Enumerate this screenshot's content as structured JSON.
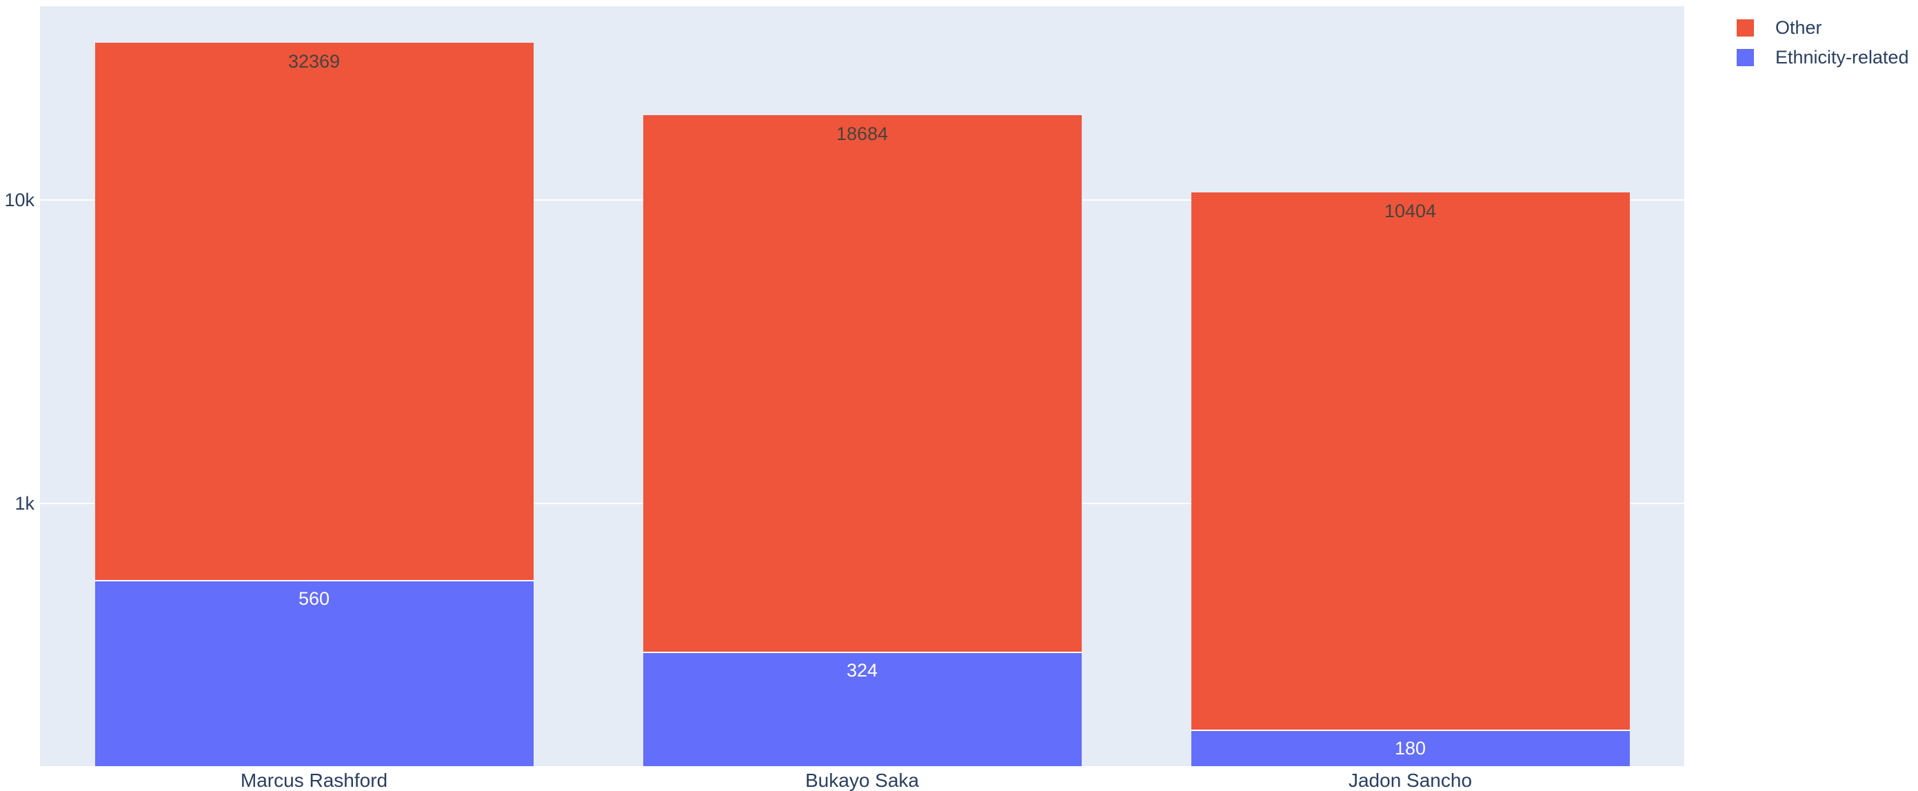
{
  "chart_data": {
    "type": "bar",
    "stacked": true,
    "orientation": "vertical",
    "log_y": true,
    "title": "",
    "xlabel": "",
    "ylabel": "",
    "categories": [
      "Marcus Rashford",
      "Bukayo Saka",
      "Jadon Sancho"
    ],
    "series": [
      {
        "name": "Ethnicity-related",
        "color": "#636EFA",
        "label_color": "#ffffff",
        "values": [
          560,
          324,
          180
        ]
      },
      {
        "name": "Other",
        "color": "#EF553B",
        "label_color": "#46433e",
        "values": [
          32369,
          18684,
          10404
        ]
      }
    ],
    "totals": [
      32929,
      19008,
      10584
    ],
    "legend": [
      {
        "label": "Other",
        "color": "#EF553B"
      },
      {
        "label": "Ethnicity-related",
        "color": "#636EFA"
      }
    ],
    "legend_position": "top-right-outside",
    "yticks": [
      {
        "label": "1k",
        "value": 1000
      },
      {
        "label": "10k",
        "value": 10000
      }
    ],
    "ylim_log10": [
      2.134,
      4.639
    ],
    "grid_on": true,
    "colors": {
      "plot_background": "#E5ECF6",
      "page_background": "#ffffff",
      "gridline": "#ffffff",
      "segment_divider": "#ffffff",
      "text": "#2a3f5f"
    }
  }
}
